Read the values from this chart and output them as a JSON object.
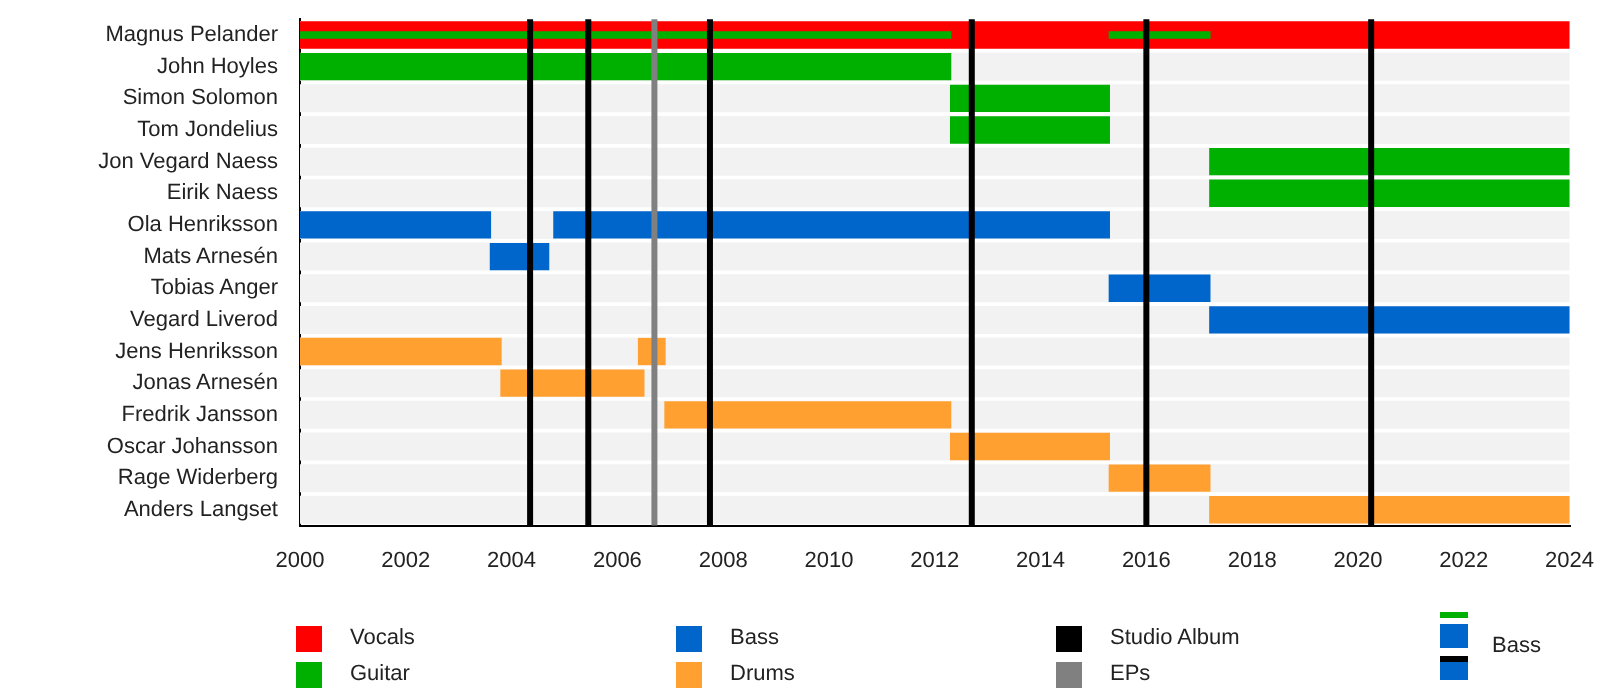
{
  "chart_data": {
    "type": "bar",
    "orientation": "horizontal",
    "categories": [
      "Magnus Pelander",
      "John Hoyles",
      "Simon Solomon",
      "Tom Jondelius",
      "Jon Vegard Naess",
      "Eirik Naess",
      "Ola Henriksson",
      "Mats Arnesén",
      "Tobias Anger",
      "Vegard Liverod",
      "Jens Henriksson",
      "Jonas Arnesén",
      "Fredrik Jansson",
      "Oscar Johansson",
      "Rage Widerberg",
      "Anders Langset"
    ],
    "series": [
      {
        "name": "Vocals",
        "color": "#ff0000",
        "base": [
          2000,
          null,
          null,
          null,
          null,
          null,
          null,
          null,
          null,
          null,
          null,
          null,
          null,
          null,
          null,
          null
        ],
        "values": [
          24,
          null,
          null,
          null,
          null,
          null,
          null,
          null,
          null,
          null,
          null,
          null,
          null,
          null,
          null,
          null
        ]
      },
      {
        "name": "Guitar",
        "color": "#00b000",
        "base": [
          2000,
          2000,
          2012.3,
          2012.3,
          2017.2,
          2017.2,
          null,
          null,
          null,
          null,
          null,
          null,
          null,
          null,
          null,
          null
        ],
        "values": [
          12.3,
          12.3,
          3,
          3,
          6.8,
          6.8,
          null,
          null,
          null,
          null,
          null,
          null,
          null,
          null,
          null,
          null
        ]
      },
      {
        "color": "#00b000",
        "base": [
          2015.3,
          null,
          null,
          null,
          null,
          null,
          null,
          null,
          null,
          null,
          null,
          null,
          null,
          null,
          null,
          null
        ],
        "values": [
          1.9,
          null,
          null,
          null,
          null,
          null,
          null,
          null,
          null,
          null,
          null,
          null,
          null,
          null,
          null,
          null
        ]
      },
      {
        "name": "Bass",
        "color": "#0066cc",
        "base": [
          null,
          null,
          null,
          null,
          null,
          null,
          2000,
          2003.6,
          2015.3,
          2017.2,
          null,
          null,
          null,
          null,
          null,
          null
        ],
        "values": [
          null,
          null,
          null,
          null,
          null,
          null,
          3.6,
          1.1,
          1.9,
          6.8,
          null,
          null,
          null,
          null,
          null,
          null
        ]
      },
      {
        "color": "#0066cc",
        "base": [
          null,
          null,
          null,
          null,
          null,
          null,
          2004.8,
          null,
          null,
          null,
          null,
          null,
          null,
          null,
          null,
          null
        ],
        "values": [
          null,
          null,
          null,
          null,
          null,
          null,
          10.5,
          null,
          null,
          null,
          null,
          null,
          null,
          null,
          null,
          null
        ]
      },
      {
        "name": "Drums",
        "color": "#ffa030",
        "base": [
          null,
          null,
          null,
          null,
          null,
          null,
          null,
          null,
          null,
          null,
          2000,
          2003.8,
          2006.9,
          2012.3,
          2015.3,
          2017.2
        ],
        "values": [
          null,
          null,
          null,
          null,
          null,
          null,
          null,
          null,
          null,
          null,
          3.8,
          2.7,
          5.4,
          3,
          1.9,
          6.8
        ]
      },
      {
        "color": "#ffa030",
        "base": [
          null,
          null,
          null,
          null,
          null,
          null,
          null,
          null,
          null,
          null,
          2006.4,
          null,
          null,
          null,
          null,
          null
        ],
        "values": [
          null,
          null,
          null,
          null,
          null,
          null,
          null,
          null,
          null,
          null,
          0.5,
          null,
          null,
          null,
          null,
          null
        ]
      }
    ],
    "xlim": [
      2000,
      2024
    ],
    "xticks": [
      2000,
      2002,
      2004,
      2006,
      2008,
      2010,
      2012,
      2014,
      2016,
      2018,
      2020,
      2022,
      2024
    ],
    "ref_lines": [
      {
        "axis": "x",
        "value": 2004.35,
        "label": "Studio Album",
        "color": "#000000"
      },
      {
        "axis": "x",
        "value": 2005.45,
        "label": null,
        "color": "#000000"
      },
      {
        "axis": "x",
        "value": 2006.7,
        "label": "EPs",
        "color": "#808080"
      },
      {
        "axis": "x",
        "value": 2007.75,
        "label": null,
        "color": "#000000"
      },
      {
        "axis": "x",
        "value": 2012.7,
        "label": null,
        "color": "#000000"
      },
      {
        "axis": "x",
        "value": 2016,
        "label": null,
        "color": "#000000"
      },
      {
        "axis": "x",
        "value": 2020.25,
        "label": null,
        "color": "#000000"
      }
    ],
    "annotations": [
      "Bass"
    ],
    "legend": "bottom",
    "grid": false
  }
}
